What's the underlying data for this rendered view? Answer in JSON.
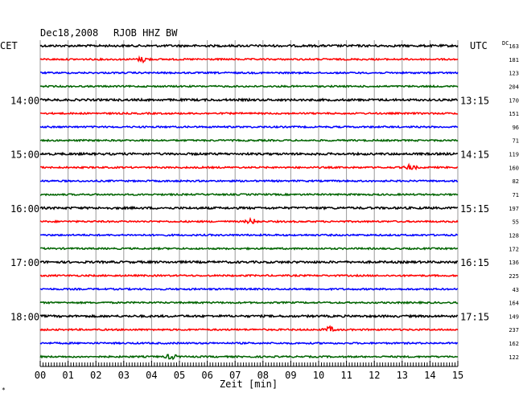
{
  "header": {
    "date": "Dec18,2008",
    "station": "RJOB HHZ BW"
  },
  "labels": {
    "left_timezone": "CET",
    "right_timezone": "UTC",
    "dc_header": "DC",
    "footer_mark": "*"
  },
  "chart_data": {
    "type": "line",
    "title": "Dec18,2008   RJOB HHZ BW",
    "xlabel": "Zeit [min]",
    "xlim": [
      0,
      15
    ],
    "x_ticks": [
      "00",
      "01",
      "02",
      "03",
      "04",
      "05",
      "06",
      "07",
      "08",
      "09",
      "10",
      "11",
      "12",
      "13",
      "14",
      "15"
    ],
    "grid": true,
    "trace_colors": [
      "#000000",
      "#ff0000",
      "#0000ff",
      "#006400"
    ],
    "left_hour_labels": [
      {
        "trace": 4,
        "label": "14:00"
      },
      {
        "trace": 8,
        "label": "15:00"
      },
      {
        "trace": 12,
        "label": "16:00"
      },
      {
        "trace": 16,
        "label": "17:00"
      },
      {
        "trace": 20,
        "label": "18:00"
      }
    ],
    "right_hour_labels": [
      {
        "trace": 4,
        "label": "13:15"
      },
      {
        "trace": 8,
        "label": "14:15"
      },
      {
        "trace": 12,
        "label": "15:15"
      },
      {
        "trace": 16,
        "label": "16:15"
      },
      {
        "trace": 20,
        "label": "17:15"
      }
    ],
    "dc_offsets": [
      "163",
      "181",
      "123",
      "204",
      "170",
      "151",
      "96",
      "71",
      "119",
      "160",
      "82",
      "71",
      "197",
      "55",
      "128",
      "172",
      "136",
      "225",
      "43",
      "164",
      "149",
      "237",
      "162",
      "122"
    ],
    "events": [
      {
        "trace": 1,
        "minute": 3.7
      },
      {
        "trace": 9,
        "minute": 13.3
      },
      {
        "trace": 13,
        "minute": 7.6
      },
      {
        "trace": 21,
        "minute": 10.4
      },
      {
        "trace": 23,
        "minute": 4.7
      }
    ]
  }
}
